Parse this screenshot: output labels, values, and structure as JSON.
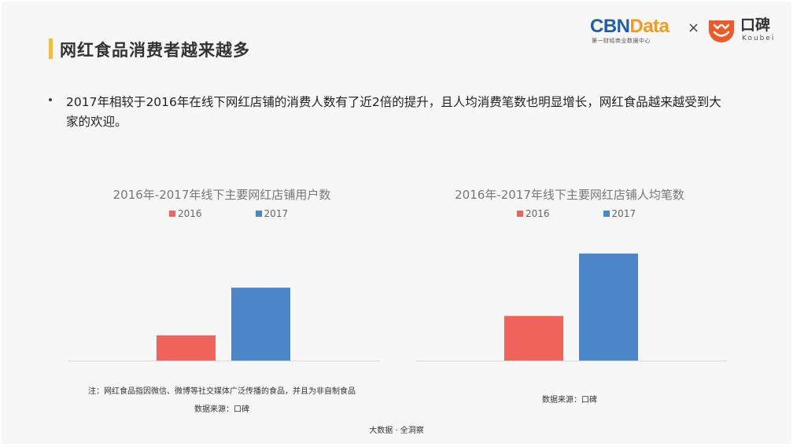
{
  "header": {
    "title": "网红食品消费者越来越多",
    "accent_color": "#f5c02a"
  },
  "logos": {
    "cbn_primary": "CBN",
    "cbn_secondary": "Data",
    "cbn_subtitle": "第一财经商业数据中心",
    "separator": "×",
    "koubei_name": "口碑",
    "koubei_english": "Koubei",
    "koubei_icon": "koubei-smile-icon",
    "cbn_color": "#1f5faa",
    "data_color": "#f39a1e",
    "koubei_color": "#f05a28"
  },
  "bullet": {
    "text": "2017年相较于2016年在线下网红店铺的消费人数有了近2倍的提升，且人均消费笔数也明显增长，网红食品越来越受到大家的欢迎。"
  },
  "charts": [
    {
      "note": "注：网红食品指因微信、微博等社交媒体广泛传播的食品，并且为非自制食品",
      "source": "数据来源：口碑"
    },
    {
      "note": "",
      "source": "数据来源：口碑"
    }
  ],
  "chart_data": [
    {
      "type": "bar",
      "title": "2016年-2017年线下主要网红店铺用户数",
      "categories": [
        "2016",
        "2017"
      ],
      "values": [
        1,
        2.9
      ],
      "colors": [
        "#f0645c",
        "#4a86c8"
      ],
      "legend": [
        "2016",
        "2017"
      ],
      "legend_position": "top",
      "ylim": [
        0,
        4.5
      ],
      "grid": false,
      "value_axis_labels": false
    },
    {
      "type": "bar",
      "title": "2016年-2017年线下主要网红店铺人均笔数",
      "categories": [
        "2016",
        "2017"
      ],
      "values": [
        1,
        2.4
      ],
      "colors": [
        "#f0645c",
        "#4a86c8"
      ],
      "legend": [
        "2016",
        "2017"
      ],
      "legend_position": "top",
      "ylim": [
        0,
        2.8
      ],
      "grid": false,
      "value_axis_labels": false
    }
  ],
  "footer": {
    "text": "大数据 · 全洞察"
  }
}
